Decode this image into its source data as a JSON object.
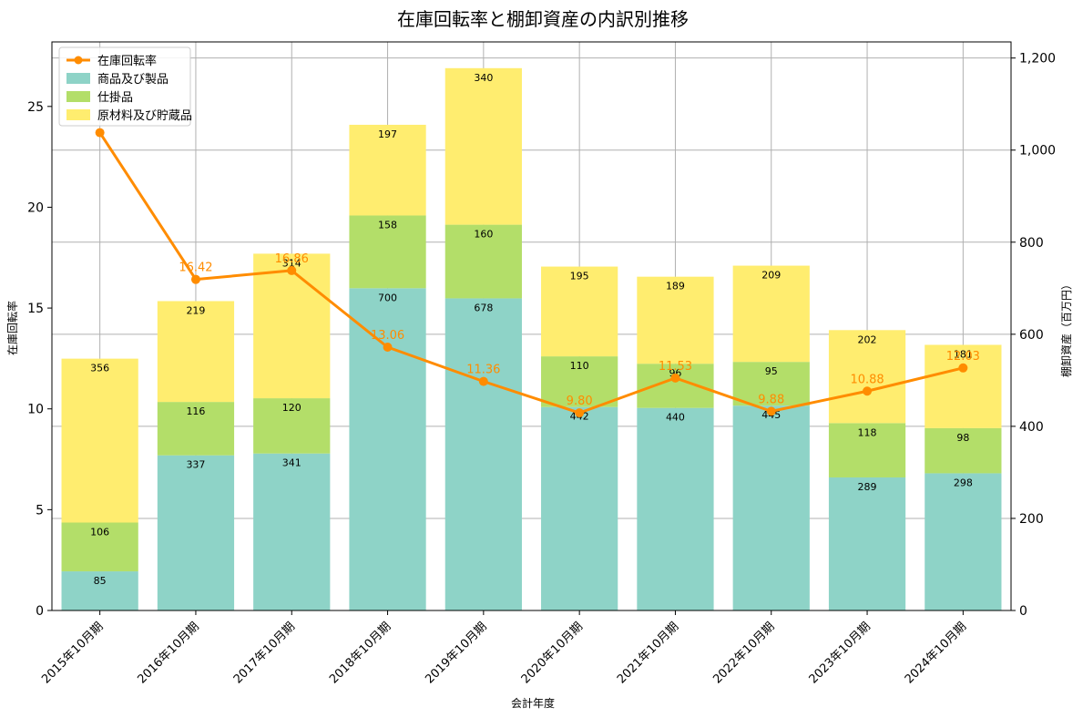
{
  "chart_data": {
    "type": "bar",
    "title": "在庫回転率と棚卸資産の内訳別推移",
    "xlabel": "会計年度",
    "ylabel": "在庫回転率",
    "ylabel_right": "棚卸資産（百万円）",
    "categories": [
      "2015年10月期",
      "2016年10月期",
      "2017年10月期",
      "2018年10月期",
      "2019年10月期",
      "2020年10月期",
      "2021年10月期",
      "2022年10月期",
      "2023年10月期",
      "2024年10月期"
    ],
    "ylim_left": [
      0,
      28.2
    ],
    "ylim_right": [
      0,
      1235
    ],
    "yticks_left": [
      0,
      5,
      10,
      15,
      20,
      25
    ],
    "yticks_right": [
      0,
      200,
      400,
      600,
      800,
      1000,
      1200
    ],
    "yticks_right_labels": [
      "0",
      "200",
      "400",
      "600",
      "800",
      "1,000",
      "1,200"
    ],
    "grid": true,
    "legend_position": "top-left",
    "series": [
      {
        "name": "商品及び製品",
        "axis": "right",
        "kind": "bar",
        "color": "#8ed3c7",
        "values": [
          85,
          337,
          341,
          700,
          678,
          442,
          440,
          445,
          289,
          298
        ]
      },
      {
        "name": "仕掛品",
        "axis": "right",
        "kind": "bar",
        "color": "#b3de69",
        "values": [
          106,
          116,
          120,
          158,
          160,
          110,
          96,
          95,
          118,
          98
        ]
      },
      {
        "name": "原材料及び貯蔵品",
        "axis": "right",
        "kind": "bar",
        "color": "#ffed6f",
        "values": [
          356,
          219,
          314,
          197,
          340,
          195,
          189,
          209,
          202,
          181
        ]
      },
      {
        "name": "在庫回転率",
        "axis": "left",
        "kind": "line",
        "color": "#ff8c00",
        "values": [
          23.7,
          16.42,
          16.86,
          13.06,
          11.36,
          9.8,
          11.53,
          9.88,
          10.88,
          12.03
        ],
        "labels": [
          "",
          "16.42",
          "16.86",
          "13.06",
          "11.36",
          "9.80",
          "11.53",
          "9.88",
          "10.88",
          "12.03"
        ]
      }
    ]
  }
}
